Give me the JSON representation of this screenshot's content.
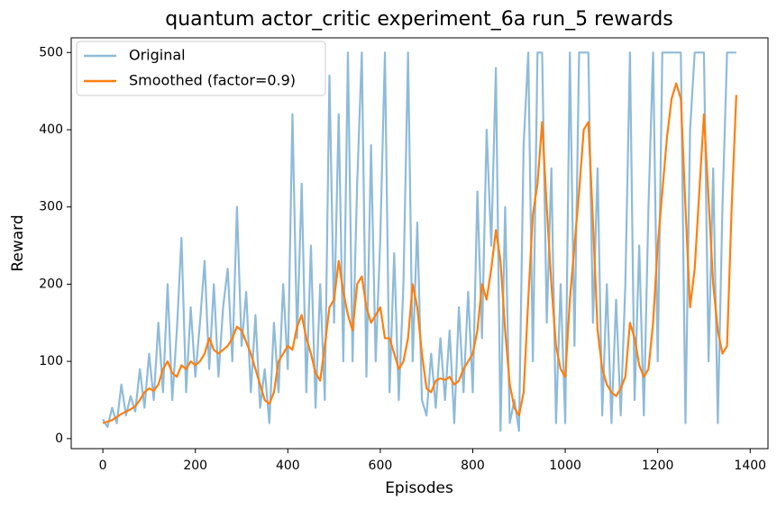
{
  "chart_data": {
    "type": "line",
    "title": "quantum actor_critic experiment_6a run_5 rewards",
    "xlabel": "Episodes",
    "ylabel": "Reward",
    "x": [
      0,
      10,
      20,
      30,
      40,
      50,
      60,
      70,
      80,
      90,
      100,
      110,
      120,
      130,
      140,
      150,
      160,
      170,
      180,
      190,
      200,
      210,
      220,
      230,
      240,
      250,
      260,
      270,
      280,
      290,
      300,
      310,
      320,
      330,
      340,
      350,
      360,
      370,
      380,
      390,
      400,
      410,
      420,
      430,
      440,
      450,
      460,
      470,
      480,
      490,
      500,
      510,
      520,
      530,
      540,
      550,
      560,
      570,
      580,
      590,
      600,
      610,
      620,
      630,
      640,
      650,
      660,
      670,
      680,
      690,
      700,
      710,
      720,
      730,
      740,
      750,
      760,
      770,
      780,
      790,
      800,
      810,
      820,
      830,
      840,
      850,
      860,
      870,
      880,
      890,
      900,
      910,
      920,
      930,
      940,
      950,
      960,
      970,
      980,
      990,
      1000,
      1010,
      1020,
      1030,
      1040,
      1050,
      1060,
      1070,
      1080,
      1090,
      1100,
      1110,
      1120,
      1130,
      1140,
      1150,
      1160,
      1170,
      1180,
      1190,
      1200,
      1210,
      1220,
      1230,
      1240,
      1250,
      1260,
      1270,
      1280,
      1290,
      1300,
      1310,
      1320,
      1330,
      1340,
      1350,
      1360,
      1370
    ],
    "series": [
      {
        "name": "Original",
        "color": "#8fbbd9",
        "width": 2.2,
        "values": [
          25,
          15,
          40,
          20,
          70,
          30,
          55,
          35,
          90,
          40,
          110,
          50,
          150,
          60,
          200,
          50,
          140,
          260,
          60,
          170,
          80,
          150,
          230,
          90,
          200,
          80,
          170,
          220,
          100,
          300,
          120,
          190,
          60,
          160,
          40,
          90,
          20,
          150,
          60,
          200,
          90,
          420,
          130,
          330,
          60,
          250,
          40,
          200,
          50,
          470,
          150,
          420,
          100,
          500,
          100,
          330,
          500,
          80,
          380,
          100,
          260,
          500,
          60,
          240,
          50,
          200,
          500,
          100,
          280,
          50,
          30,
          110,
          40,
          130,
          50,
          140,
          20,
          170,
          60,
          190,
          60,
          320,
          130,
          400,
          250,
          480,
          10,
          300,
          20,
          50,
          10,
          380,
          500,
          100,
          500,
          500,
          150,
          350,
          20,
          200,
          20,
          500,
          120,
          500,
          500,
          500,
          150,
          350,
          30,
          200,
          20,
          180,
          30,
          200,
          500,
          50,
          250,
          30,
          300,
          500,
          100,
          500,
          500,
          500,
          500,
          500,
          20,
          400,
          500,
          500,
          500,
          100,
          350,
          20,
          300,
          500,
          500,
          500
        ]
      },
      {
        "name": "Smoothed (factor=0.9)",
        "color": "#ff7f0e",
        "width": 2.2,
        "values": [
          20,
          22,
          24,
          28,
          32,
          35,
          38,
          42,
          50,
          60,
          65,
          62,
          70,
          90,
          100,
          85,
          80,
          95,
          90,
          100,
          95,
          100,
          110,
          130,
          115,
          110,
          115,
          120,
          130,
          145,
          140,
          125,
          110,
          90,
          70,
          50,
          45,
          60,
          100,
          110,
          120,
          115,
          145,
          160,
          130,
          110,
          85,
          75,
          120,
          170,
          180,
          230,
          190,
          160,
          140,
          200,
          210,
          170,
          150,
          160,
          170,
          130,
          130,
          110,
          90,
          100,
          130,
          200,
          170,
          110,
          65,
          60,
          75,
          78,
          76,
          80,
          70,
          75,
          90,
          100,
          110,
          140,
          200,
          180,
          220,
          270,
          230,
          140,
          70,
          40,
          30,
          60,
          180,
          290,
          330,
          410,
          300,
          200,
          120,
          90,
          80,
          180,
          250,
          320,
          400,
          410,
          280,
          140,
          90,
          70,
          60,
          55,
          65,
          80,
          150,
          130,
          95,
          80,
          90,
          150,
          250,
          320,
          390,
          440,
          460,
          440,
          300,
          170,
          220,
          320,
          420,
          310,
          200,
          140,
          110,
          120,
          300,
          445
        ]
      }
    ],
    "xlim": [
      -68.5,
      1438.5
    ],
    "xticks": [
      0,
      200,
      400,
      600,
      800,
      1000,
      1200,
      1400
    ],
    "ylim": [
      -13,
      519
    ],
    "yticks": [
      0,
      100,
      200,
      300,
      400,
      500
    ],
    "legend": "upper left"
  }
}
